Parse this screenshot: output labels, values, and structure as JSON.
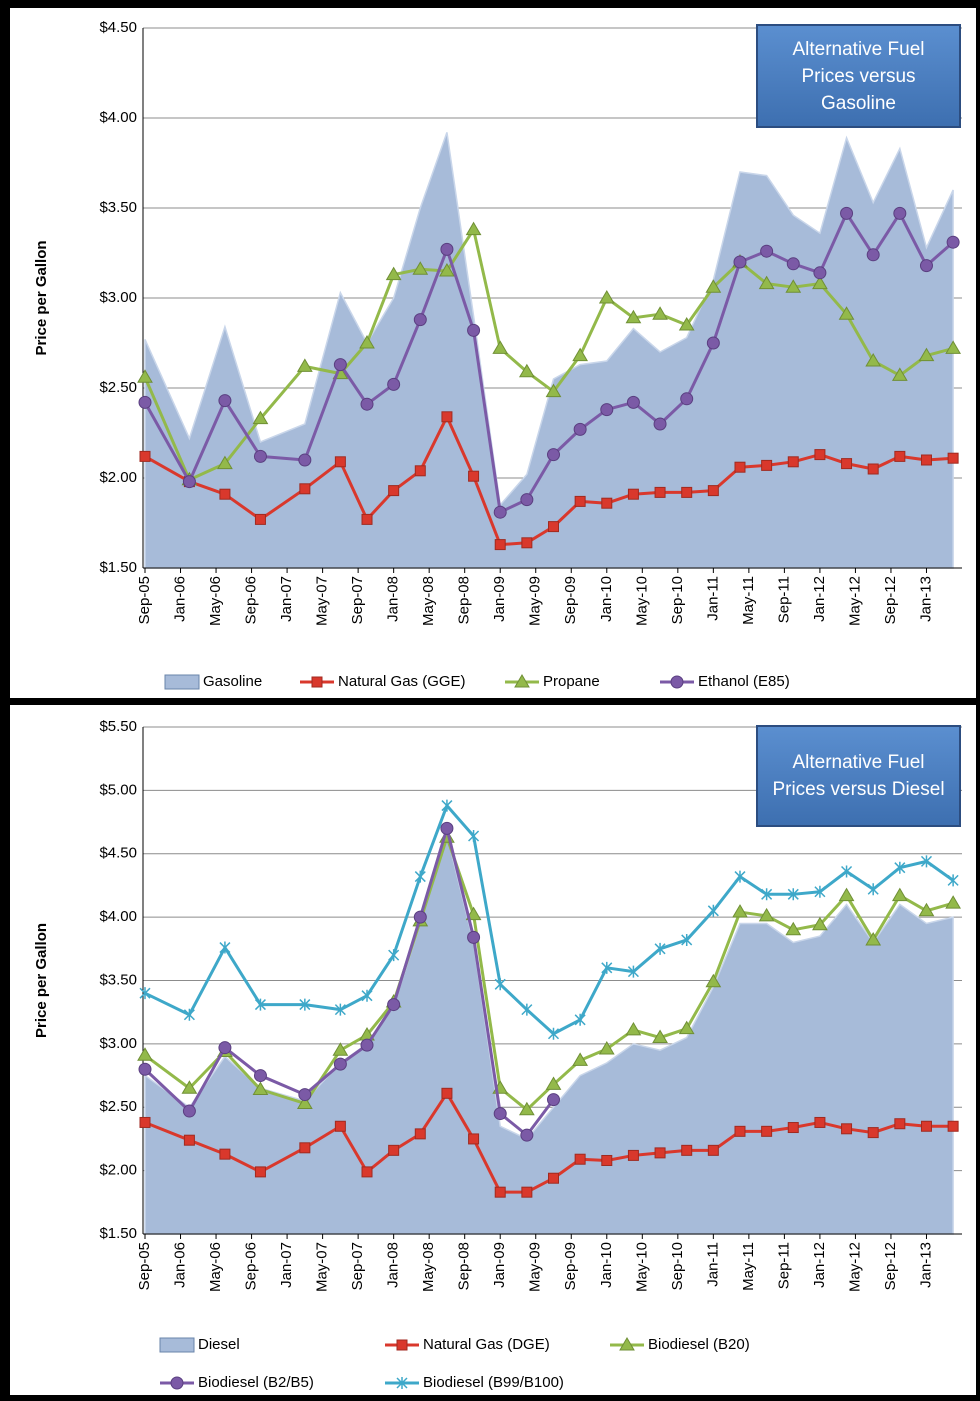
{
  "chart_data": [
    {
      "type": "line",
      "annotation": "Alternative Fuel Prices versus Gasoline",
      "y_label": "Price per Gallon",
      "x": [
        "Sep-05",
        "Feb-06",
        "Jun-06",
        "Oct-06",
        "Mar-07",
        "Jul-07",
        "Oct-07",
        "Jan-08",
        "Apr-08",
        "Jul-08",
        "Oct-08",
        "Jan-09",
        "Apr-09",
        "Jul-09",
        "Oct-09",
        "Jan-10",
        "Apr-10",
        "Jul-10",
        "Oct-10",
        "Jan-11",
        "Apr-11",
        "Jul-11",
        "Oct-11",
        "Jan-12",
        "Apr-12",
        "Jul-12",
        "Oct-12",
        "Jan-13",
        "Apr-13"
      ],
      "xlim": [
        "Sep-05",
        "May-13"
      ],
      "xticks": [
        "Sep-05",
        "Jan-06",
        "May-06",
        "Sep-06",
        "Jan-07",
        "May-07",
        "Sep-07",
        "Jan-08",
        "May-08",
        "Sep-08",
        "Jan-09",
        "May-09",
        "Sep-09",
        "Jan-10",
        "May-10",
        "Sep-10",
        "Jan-11",
        "May-11",
        "Sep-11",
        "Jan-12",
        "May-12",
        "Sep-12",
        "Jan-13"
      ],
      "ylim": [
        1.5,
        4.5
      ],
      "yticks": [
        {
          "value": 1.5,
          "label": "$1.50"
        },
        {
          "value": 2.0,
          "label": "$2.00"
        },
        {
          "value": 2.5,
          "label": "$2.50"
        },
        {
          "value": 3.0,
          "label": "$3.00"
        },
        {
          "value": 3.5,
          "label": "$3.50"
        },
        {
          "value": 4.0,
          "label": "$4.00"
        },
        {
          "value": 4.5,
          "label": "$4.50"
        }
      ],
      "grid": true,
      "series": [
        {
          "name": "Gasoline",
          "style": "area",
          "color": "#a7bbd9",
          "values": [
            2.77,
            2.22,
            2.84,
            2.2,
            2.3,
            3.03,
            2.75,
            3.0,
            3.5,
            3.92,
            2.9,
            1.85,
            2.02,
            2.55,
            2.63,
            2.65,
            2.83,
            2.7,
            2.78,
            3.1,
            3.7,
            3.68,
            3.46,
            3.36,
            3.89,
            3.53,
            3.83,
            3.28,
            3.6
          ]
        },
        {
          "name": "Natural Gas (GGE)",
          "style": "line",
          "marker": "square",
          "color": "#d9382c",
          "values": [
            2.12,
            1.98,
            1.91,
            1.77,
            1.94,
            2.09,
            1.77,
            1.93,
            2.04,
            2.34,
            2.01,
            1.63,
            1.64,
            1.73,
            1.87,
            1.86,
            1.91,
            1.92,
            1.92,
            1.93,
            2.06,
            2.07,
            2.09,
            2.13,
            2.08,
            2.05,
            2.12,
            2.1,
            2.11
          ]
        },
        {
          "name": "Propane",
          "style": "line",
          "marker": "triangle",
          "color": "#93b94a",
          "values": [
            2.56,
            1.99,
            2.08,
            2.33,
            2.62,
            2.58,
            2.75,
            3.13,
            3.16,
            3.15,
            3.38,
            2.72,
            2.59,
            2.48,
            2.68,
            3.0,
            2.89,
            2.91,
            2.85,
            3.06,
            3.2,
            3.08,
            3.06,
            3.08,
            2.91,
            2.65,
            2.57,
            2.68,
            2.72
          ]
        },
        {
          "name": "Ethanol (E85)",
          "style": "line",
          "marker": "circle",
          "color": "#7b5aa6",
          "values": [
            2.42,
            1.98,
            2.43,
            2.12,
            2.1,
            2.63,
            2.41,
            2.52,
            2.88,
            3.27,
            2.82,
            1.81,
            1.88,
            2.13,
            2.27,
            2.38,
            2.42,
            2.3,
            2.44,
            2.75,
            3.2,
            3.26,
            3.19,
            3.14,
            3.47,
            3.24,
            3.47,
            3.18,
            3.31
          ]
        }
      ]
    },
    {
      "type": "line",
      "annotation": "Alternative Fuel Prices versus Diesel",
      "y_label": "Price per Gallon",
      "x": [
        "Sep-05",
        "Feb-06",
        "Jun-06",
        "Oct-06",
        "Mar-07",
        "Jul-07",
        "Oct-07",
        "Jan-08",
        "Apr-08",
        "Jul-08",
        "Oct-08",
        "Jan-09",
        "Apr-09",
        "Jul-09",
        "Oct-09",
        "Jan-10",
        "Apr-10",
        "Jul-10",
        "Oct-10",
        "Jan-11",
        "Apr-11",
        "Jul-11",
        "Oct-11",
        "Jan-12",
        "Apr-12",
        "Jul-12",
        "Oct-12",
        "Jan-13",
        "Apr-13"
      ],
      "xlim": [
        "Sep-05",
        "May-13"
      ],
      "xticks": [
        "Sep-05",
        "Jan-06",
        "May-06",
        "Sep-06",
        "Jan-07",
        "May-07",
        "Sep-07",
        "Jan-08",
        "May-08",
        "Sep-08",
        "Jan-09",
        "May-09",
        "Sep-09",
        "Jan-10",
        "May-10",
        "Sep-10",
        "Jan-11",
        "May-11",
        "Sep-11",
        "Jan-12",
        "May-12",
        "Sep-12",
        "Jan-13"
      ],
      "ylim": [
        1.5,
        5.5
      ],
      "yticks": [
        {
          "value": 1.5,
          "label": "$1.50"
        },
        {
          "value": 2.0,
          "label": "$2.00"
        },
        {
          "value": 2.5,
          "label": "$2.50"
        },
        {
          "value": 3.0,
          "label": "$3.00"
        },
        {
          "value": 3.5,
          "label": "$3.50"
        },
        {
          "value": 4.0,
          "label": "$4.00"
        },
        {
          "value": 4.5,
          "label": "$4.50"
        },
        {
          "value": 5.0,
          "label": "$5.00"
        },
        {
          "value": 5.5,
          "label": "$5.50"
        }
      ],
      "grid": true,
      "series": [
        {
          "name": "Diesel",
          "style": "area",
          "color": "#a7bbd9",
          "values": [
            2.75,
            2.5,
            2.9,
            2.65,
            2.55,
            2.85,
            3.0,
            3.3,
            3.95,
            4.65,
            3.8,
            2.35,
            2.25,
            2.5,
            2.75,
            2.85,
            3.0,
            2.95,
            3.05,
            3.45,
            3.95,
            3.95,
            3.8,
            3.85,
            4.1,
            3.8,
            4.1,
            3.95,
            4.0
          ]
        },
        {
          "name": "Natural Gas (DGE)",
          "style": "line",
          "marker": "square",
          "color": "#d9382c",
          "values": [
            2.38,
            2.24,
            2.13,
            1.99,
            2.18,
            2.35,
            1.99,
            2.16,
            2.29,
            2.61,
            2.25,
            1.83,
            1.83,
            1.94,
            2.09,
            2.08,
            2.12,
            2.14,
            2.16,
            2.16,
            2.31,
            2.31,
            2.34,
            2.38,
            2.33,
            2.3,
            2.37,
            2.35,
            2.35
          ]
        },
        {
          "name": "Biodiesel (B20)",
          "style": "line",
          "marker": "triangle",
          "color": "#93b94a",
          "values": [
            2.91,
            2.65,
            2.94,
            2.64,
            2.53,
            2.95,
            3.07,
            3.33,
            3.97,
            4.63,
            4.02,
            2.65,
            2.48,
            2.68,
            2.87,
            2.96,
            3.11,
            3.05,
            3.12,
            3.49,
            4.04,
            4.01,
            3.9,
            3.94,
            4.17,
            3.82,
            4.17,
            4.05,
            4.11
          ]
        },
        {
          "name": "Biodiesel (B2/B5)",
          "style": "line",
          "marker": "circle",
          "color": "#7b5aa6",
          "values": [
            2.8,
            2.47,
            2.97,
            2.75,
            2.6,
            2.84,
            2.99,
            3.31,
            4.0,
            4.7,
            3.84,
            2.45,
            2.28,
            2.56,
            null,
            null,
            null,
            null,
            null,
            null,
            null,
            null,
            null,
            null,
            null,
            null,
            null,
            null,
            null
          ]
        },
        {
          "name": "Biodiesel (B99/B100)",
          "style": "line",
          "marker": "star",
          "color": "#3ea8c9",
          "values": [
            3.4,
            3.23,
            3.76,
            3.31,
            3.31,
            3.27,
            3.38,
            3.7,
            4.32,
            4.88,
            4.64,
            3.47,
            3.27,
            3.08,
            3.19,
            3.6,
            3.57,
            3.75,
            3.82,
            4.05,
            4.32,
            4.18,
            4.18,
            4.2,
            4.36,
            4.22,
            4.39,
            4.44,
            4.29
          ]
        }
      ]
    }
  ]
}
